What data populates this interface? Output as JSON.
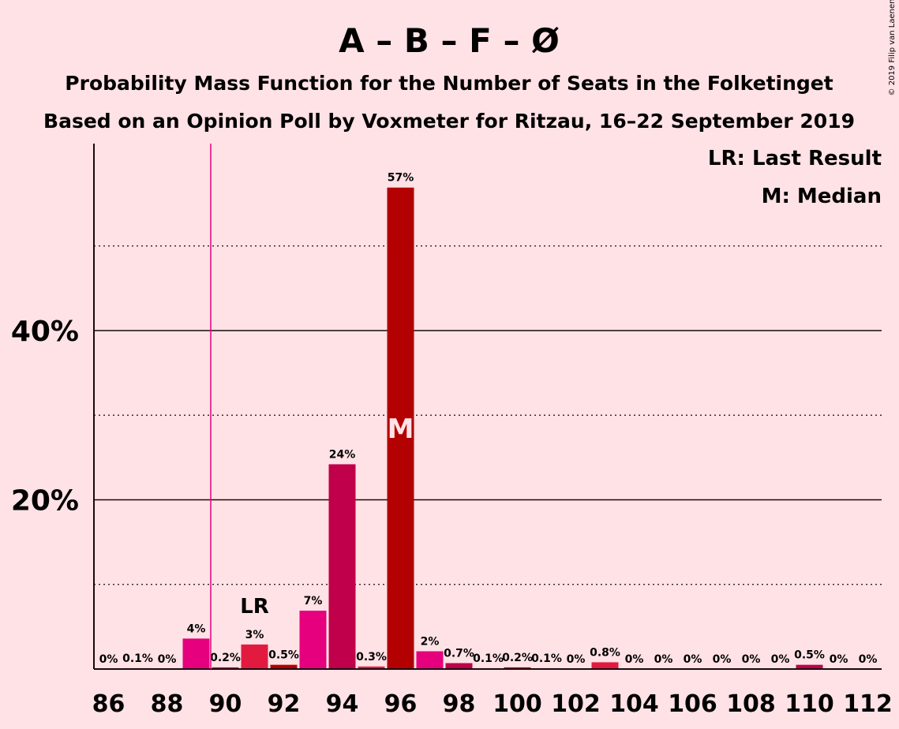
{
  "chart_data": {
    "type": "bar",
    "title": "A – B – F – Ø",
    "subtitle": "Probability Mass Function for the Number of Seats in the Folketinget",
    "subtitle2": "Based on an Opinion Poll by Voxmeter for Ritzau, 16–22 September 2019",
    "credit": "© 2019 Filip van Laenen",
    "legend": [
      "LR: Last Result",
      "M: Median"
    ],
    "legend_position": "top-right",
    "last_result": 91,
    "last_result_label": "LR",
    "median": 96,
    "median_label": "M",
    "majority_line": 89.5,
    "ylim": [
      0,
      62
    ],
    "yticks": [
      20,
      40
    ],
    "ytick_labels": [
      "20%",
      "40%"
    ],
    "grid": "dotted at 10% steps, solid at 20% steps",
    "x_tick_labels": [
      "86",
      "88",
      "90",
      "92",
      "94",
      "96",
      "98",
      "100",
      "102",
      "104",
      "106",
      "108",
      "110",
      "112"
    ],
    "x": [
      86,
      87,
      88,
      89,
      90,
      91,
      92,
      93,
      94,
      95,
      96,
      97,
      98,
      99,
      100,
      101,
      102,
      103,
      104,
      105,
      106,
      107,
      108,
      109,
      110,
      111,
      112
    ],
    "values": [
      0,
      0.1,
      0,
      3.6,
      0.2,
      2.9,
      0.5,
      6.9,
      24.2,
      0.3,
      56.9,
      2.1,
      0.7,
      0.1,
      0.2,
      0.1,
      0,
      0.8,
      0,
      0,
      0,
      0,
      0,
      0,
      0.5,
      0,
      0
    ],
    "labels": [
      "0%",
      "0.1%",
      "0%",
      "4%",
      "0.2%",
      "3%",
      "0.5%",
      "7%",
      "24%",
      "0.3%",
      "57%",
      "2%",
      "0.7%",
      "0.1%",
      "0.2%",
      "0.1%",
      "0%",
      "0.8%",
      "0%",
      "0%",
      "0%",
      "0%",
      "0%",
      "0%",
      "0.5%",
      "0%",
      "0%"
    ],
    "colors": {
      "background": "#FFE2E6",
      "bar_cycle": [
        "#E6007E",
        "#C0004A",
        "#E31A40",
        "#B30000"
      ],
      "axis": "#1a0a0a",
      "majority": "#E6007E"
    }
  }
}
